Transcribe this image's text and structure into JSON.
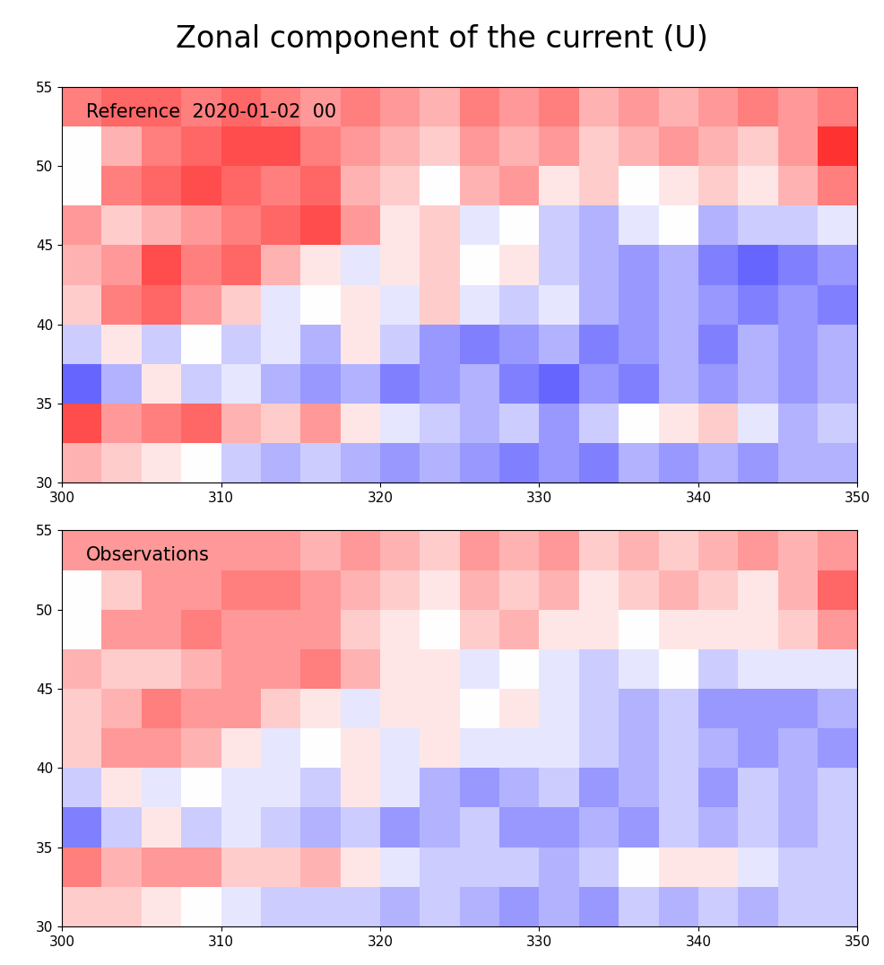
{
  "title": "Zonal component of the current (U)",
  "chart_data": [
    {
      "type": "heatmap",
      "label": "Reference  2020-01-02  00",
      "color": "bwr",
      "xlim": [
        300,
        350
      ],
      "ylim": [
        30,
        55
      ],
      "xticks": [
        300,
        310,
        320,
        330,
        340,
        350
      ],
      "yticks": [
        30,
        35,
        40,
        45,
        50,
        55
      ],
      "value_range": [
        -1,
        1
      ],
      "x": [
        301.25,
        303.75,
        306.25,
        308.75,
        311.25,
        313.75,
        316.25,
        318.75,
        321.25,
        323.75,
        326.25,
        328.75,
        331.25,
        333.75,
        336.25,
        338.75,
        341.25,
        343.75,
        346.25,
        348.75
      ],
      "y": [
        31.25,
        33.75,
        36.25,
        38.75,
        41.25,
        43.75,
        46.25,
        48.75,
        51.25,
        53.75
      ],
      "cells": [
        [
          0.3,
          0.2,
          0.1,
          0.0,
          -0.2,
          -0.3,
          -0.2,
          -0.3,
          -0.4,
          -0.3,
          -0.4,
          -0.5,
          -0.4,
          -0.5,
          -0.3,
          -0.4,
          -0.3,
          -0.4,
          -0.3,
          -0.3
        ],
        [
          0.7,
          0.4,
          0.5,
          0.6,
          0.3,
          0.2,
          0.4,
          0.1,
          -0.1,
          -0.2,
          -0.3,
          -0.2,
          -0.4,
          -0.2,
          0.0,
          0.1,
          0.2,
          -0.1,
          -0.3,
          -0.2
        ],
        [
          -0.6,
          -0.3,
          0.1,
          -0.2,
          -0.1,
          -0.3,
          -0.4,
          -0.3,
          -0.5,
          -0.4,
          -0.3,
          -0.5,
          -0.6,
          -0.4,
          -0.5,
          -0.3,
          -0.4,
          -0.3,
          -0.4,
          -0.3
        ],
        [
          -0.2,
          0.1,
          -0.2,
          0.0,
          -0.2,
          -0.1,
          -0.3,
          0.1,
          -0.2,
          -0.4,
          -0.5,
          -0.4,
          -0.3,
          -0.5,
          -0.4,
          -0.3,
          -0.5,
          -0.3,
          -0.4,
          -0.3
        ],
        [
          0.2,
          0.5,
          0.6,
          0.4,
          0.2,
          -0.1,
          0.0,
          0.1,
          -0.1,
          0.2,
          -0.1,
          -0.2,
          -0.1,
          -0.3,
          -0.4,
          -0.3,
          -0.4,
          -0.5,
          -0.4,
          -0.5
        ],
        [
          0.3,
          0.4,
          0.7,
          0.5,
          0.6,
          0.3,
          0.1,
          -0.1,
          0.1,
          0.2,
          0.0,
          0.1,
          -0.2,
          -0.3,
          -0.4,
          -0.3,
          -0.5,
          -0.6,
          -0.5,
          -0.4
        ],
        [
          0.4,
          0.2,
          0.3,
          0.4,
          0.5,
          0.6,
          0.7,
          0.4,
          0.1,
          0.2,
          -0.1,
          0.0,
          -0.2,
          -0.3,
          -0.1,
          0.0,
          -0.3,
          -0.2,
          -0.2,
          -0.1
        ],
        [
          0.0,
          0.5,
          0.6,
          0.7,
          0.6,
          0.5,
          0.6,
          0.3,
          0.2,
          0.0,
          0.3,
          0.4,
          0.1,
          0.2,
          0.0,
          0.1,
          0.2,
          0.1,
          0.3,
          0.5
        ],
        [
          0.0,
          0.3,
          0.5,
          0.6,
          0.7,
          0.7,
          0.5,
          0.4,
          0.3,
          0.2,
          0.4,
          0.3,
          0.4,
          0.2,
          0.3,
          0.4,
          0.3,
          0.2,
          0.4,
          0.8
        ],
        [
          0.5,
          0.6,
          0.6,
          0.5,
          0.6,
          0.5,
          0.4,
          0.5,
          0.4,
          0.3,
          0.5,
          0.4,
          0.5,
          0.3,
          0.4,
          0.3,
          0.4,
          0.5,
          0.4,
          0.5
        ]
      ]
    },
    {
      "type": "heatmap",
      "label": "Observations",
      "color": "bwr",
      "xlim": [
        300,
        350
      ],
      "ylim": [
        30,
        55
      ],
      "xticks": [
        300,
        310,
        320,
        330,
        340,
        350
      ],
      "yticks": [
        30,
        35,
        40,
        45,
        50,
        55
      ],
      "value_range": [
        -1,
        1
      ],
      "x": [
        301.25,
        303.75,
        306.25,
        308.75,
        311.25,
        313.75,
        316.25,
        318.75,
        321.25,
        323.75,
        326.25,
        328.75,
        331.25,
        333.75,
        336.25,
        338.75,
        341.25,
        343.75,
        346.25,
        348.75
      ],
      "y": [
        31.25,
        33.75,
        36.25,
        38.75,
        41.25,
        43.75,
        46.25,
        48.75,
        51.25,
        53.75
      ],
      "cells": [
        [
          0.2,
          0.2,
          0.1,
          0.0,
          -0.1,
          -0.2,
          -0.2,
          -0.2,
          -0.3,
          -0.2,
          -0.3,
          -0.4,
          -0.3,
          -0.4,
          -0.2,
          -0.3,
          -0.2,
          -0.3,
          -0.2,
          -0.2
        ],
        [
          0.5,
          0.3,
          0.4,
          0.4,
          0.2,
          0.2,
          0.3,
          0.1,
          -0.1,
          -0.2,
          -0.2,
          -0.2,
          -0.3,
          -0.2,
          0.0,
          0.1,
          0.1,
          -0.1,
          -0.2,
          -0.2
        ],
        [
          -0.5,
          -0.2,
          0.1,
          -0.2,
          -0.1,
          -0.2,
          -0.3,
          -0.2,
          -0.4,
          -0.3,
          -0.2,
          -0.4,
          -0.4,
          -0.3,
          -0.4,
          -0.2,
          -0.3,
          -0.2,
          -0.3,
          -0.2
        ],
        [
          -0.2,
          0.1,
          -0.1,
          0.0,
          -0.1,
          -0.1,
          -0.2,
          0.1,
          -0.1,
          -0.3,
          -0.4,
          -0.3,
          -0.2,
          -0.4,
          -0.3,
          -0.2,
          -0.4,
          -0.2,
          -0.3,
          -0.2
        ],
        [
          0.2,
          0.4,
          0.4,
          0.3,
          0.1,
          -0.1,
          0.0,
          0.1,
          -0.1,
          0.1,
          -0.1,
          -0.1,
          -0.1,
          -0.2,
          -0.3,
          -0.2,
          -0.3,
          -0.4,
          -0.3,
          -0.4
        ],
        [
          0.2,
          0.3,
          0.5,
          0.4,
          0.4,
          0.2,
          0.1,
          -0.1,
          0.1,
          0.1,
          0.0,
          0.1,
          -0.1,
          -0.2,
          -0.3,
          -0.2,
          -0.4,
          -0.4,
          -0.4,
          -0.3
        ],
        [
          0.3,
          0.2,
          0.2,
          0.3,
          0.4,
          0.4,
          0.5,
          0.3,
          0.1,
          0.1,
          -0.1,
          0.0,
          -0.1,
          -0.2,
          -0.1,
          0.0,
          -0.2,
          -0.1,
          -0.1,
          -0.1
        ],
        [
          0.0,
          0.4,
          0.4,
          0.5,
          0.4,
          0.4,
          0.4,
          0.2,
          0.1,
          0.0,
          0.2,
          0.3,
          0.1,
          0.1,
          0.0,
          0.1,
          0.1,
          0.1,
          0.2,
          0.4
        ],
        [
          0.0,
          0.2,
          0.4,
          0.4,
          0.5,
          0.5,
          0.4,
          0.3,
          0.2,
          0.1,
          0.3,
          0.2,
          0.3,
          0.1,
          0.2,
          0.3,
          0.2,
          0.1,
          0.3,
          0.6
        ],
        [
          0.4,
          0.4,
          0.4,
          0.4,
          0.4,
          0.4,
          0.3,
          0.4,
          0.3,
          0.2,
          0.4,
          0.3,
          0.4,
          0.2,
          0.3,
          0.2,
          0.3,
          0.4,
          0.3,
          0.4
        ]
      ]
    }
  ]
}
